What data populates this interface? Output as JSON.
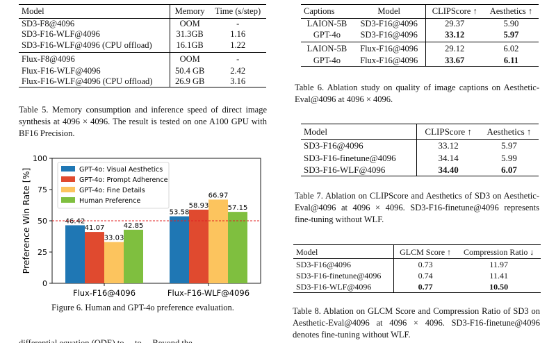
{
  "table5": {
    "headers": [
      "Model",
      "Memory",
      "Time (s/step)"
    ],
    "group1": [
      [
        "SD3-F8@4096",
        "OOM",
        "-"
      ],
      [
        "SD3-F16-WLF@4096",
        "31.3GB",
        "1.16"
      ],
      [
        "SD3-F16-WLF@4096 (CPU offload)",
        "16.1GB",
        "1.22"
      ]
    ],
    "group2": [
      [
        "Flux-F8@4096",
        "OOM",
        "-"
      ],
      [
        "Flux-F16-WLF@4096",
        "50.4 GB",
        "2.42"
      ],
      [
        "Flux-F16-WLF@4096 (CPU offload)",
        "26.9 GB",
        "3.16"
      ]
    ],
    "caption": "Table 5. Memory consumption and inference speed of direct image synthesis at 4096 × 4096. The result is tested on one A100 GPU with BF16 Precision."
  },
  "table6": {
    "headers": [
      "Captions",
      "Model",
      "CLIPScore ↑",
      "Aesthetics ↑"
    ],
    "group1": [
      [
        "LAION-5B",
        "SD3-F16@4096",
        "29.37",
        "5.90"
      ],
      [
        "GPT-4o",
        "SD3-F16@4096",
        "33.12",
        "5.97"
      ]
    ],
    "group2": [
      [
        "LAION-5B",
        "Flux-F16@4096",
        "29.12",
        "6.02"
      ],
      [
        "GPT-4o",
        "Flux-F16@4096",
        "33.67",
        "6.11"
      ]
    ],
    "caption": "Table 6. Ablation study on quality of image captions on Aesthetic-Eval@4096 at 4096 × 4096."
  },
  "table7": {
    "headers": [
      "Model",
      "CLIPScore ↑",
      "Aesthetics ↑"
    ],
    "rows": [
      [
        "SD3-F16@4096",
        "33.12",
        "5.97"
      ],
      [
        "SD3-F16-finetune@4096",
        "34.14",
        "5.99"
      ],
      [
        "SD3-F16-WLF@4096",
        "34.40",
        "6.07"
      ]
    ],
    "caption": "Table 7. Ablation on CLIPScore and Aesthetics of SD3 on Aesthetic-Eval@4096 at 4096 × 4096. SD3-F16-finetune@4096 represents fine-tuning without WLF."
  },
  "table8": {
    "headers": [
      "Model",
      "GLCM Score ↑",
      "Compression Ratio ↓"
    ],
    "rows": [
      [
        "SD3-F16@4096",
        "0.73",
        "11.97"
      ],
      [
        "SD3-F16-finetune@4096",
        "0.74",
        "11.41"
      ],
      [
        "SD3-F16-WLF@4096",
        "0.77",
        "10.50"
      ]
    ],
    "caption": "Table 8. Ablation on GLCM Score and Compression Ratio of SD3 on Aesthetic-Eval@4096 at 4096 × 4096. SD3-F16-finetune@4096 denotes fine-tuning without WLF."
  },
  "figure6": {
    "caption": "Figure 6. Human and GPT-4o preference evaluation."
  },
  "chart_data": {
    "type": "bar",
    "categories": [
      "Flux-F16@4096",
      "Flux-F16-WLF@4096"
    ],
    "series": [
      {
        "name": "GPT-4o: Visual Aesthetics",
        "values": [
          46.42,
          53.58
        ],
        "color": "#1f77b4"
      },
      {
        "name": "GPT-4o: Prompt Adherence",
        "values": [
          41.07,
          58.93
        ],
        "color": "#e04a2f"
      },
      {
        "name": "GPT-4o: Fine Details",
        "values": [
          33.03,
          66.97
        ],
        "color": "#fcc45e"
      },
      {
        "name": "Human Preference",
        "values": [
          42.85,
          57.15
        ],
        "color": "#7fbf3f"
      }
    ],
    "ylabel": "Preference Win Rate [%]",
    "ylim": [
      0,
      100
    ],
    "yticks": [
      "0",
      "25",
      "50",
      "75",
      "100"
    ],
    "reference_line": 50,
    "legend": "top-left",
    "grid": false
  },
  "footer_fragment": "differential equation (ODE) to ... to ... Beyond the"
}
